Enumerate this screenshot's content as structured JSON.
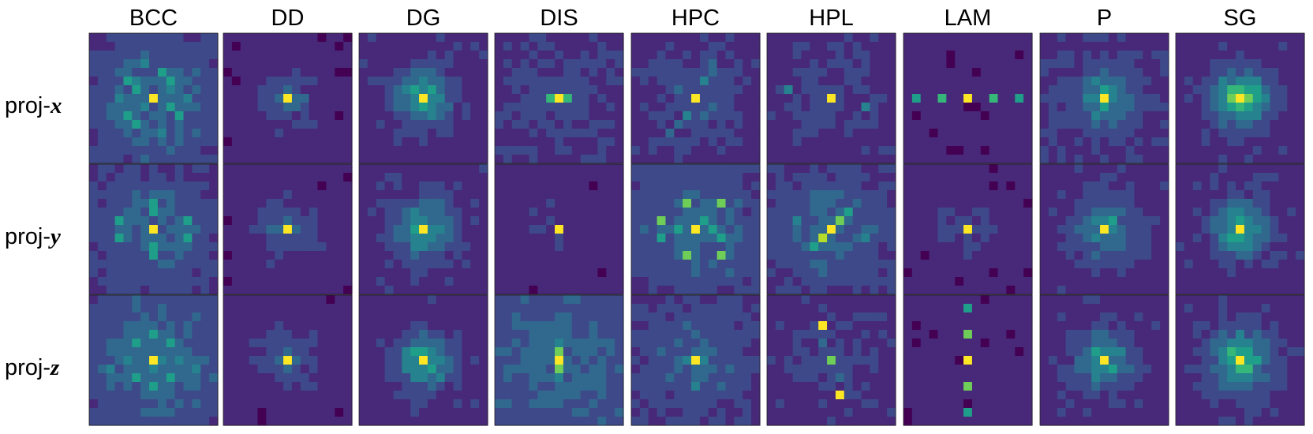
{
  "figure": {
    "columns": [
      "BCC",
      "DD",
      "DG",
      "DIS",
      "HPC",
      "HPL",
      "LAM",
      "P",
      "SG"
    ],
    "rows": [
      {
        "prefix": "proj-",
        "axis": "x"
      },
      {
        "prefix": "proj-",
        "axis": "y"
      },
      {
        "prefix": "proj-",
        "axis": "z"
      }
    ],
    "grid_size": 15,
    "colormap": [
      "#440154",
      "#482878",
      "#3e4989",
      "#31688e",
      "#26828e",
      "#1f9e89",
      "#35b779",
      "#6ece58",
      "#b5de2b",
      "#fde725"
    ],
    "panels": [
      [
        {
          "base": 0.12,
          "blobs": [
            [
              7,
              7,
              5.5,
              0.22
            ]
          ],
          "peaks": [
            [
              7,
              7,
              1
            ],
            [
              5,
              4,
              0.6
            ],
            [
              6,
              5,
              0.55
            ],
            [
              4,
              8,
              0.55
            ],
            [
              5,
              9,
              0.6
            ],
            [
              9,
              4,
              0.55
            ],
            [
              10,
              5,
              0.6
            ],
            [
              8,
              9,
              0.55
            ],
            [
              9,
              10,
              0.55
            ],
            [
              7,
              3,
              0.45
            ],
            [
              7,
              11,
              0.45
            ],
            [
              3,
              6,
              0.4
            ],
            [
              11,
              8,
              0.4
            ]
          ]
        },
        {
          "base": 0.1,
          "blobs": [
            [
              7,
              7,
              2,
              0.2
            ]
          ],
          "peaks": [
            [
              7,
              7,
              1
            ],
            [
              6,
              7,
              0.3
            ],
            [
              8,
              7,
              0.3
            ],
            [
              7,
              6,
              0.3
            ],
            [
              7,
              8,
              0.3
            ]
          ]
        },
        {
          "base": 0.12,
          "blobs": [
            [
              7,
              7,
              2.2,
              0.4
            ]
          ],
          "peaks": [
            [
              7,
              7,
              1
            ],
            [
              6,
              6,
              0.5
            ],
            [
              6,
              8,
              0.5
            ],
            [
              8,
              6,
              0.45
            ],
            [
              8,
              8,
              0.45
            ]
          ]
        },
        {
          "base": 0.14,
          "blobs": [
            [
              7,
              7,
              3.5,
              0.08
            ]
          ],
          "peaks": [
            [
              7,
              7,
              1
            ],
            [
              7,
              6,
              0.7
            ],
            [
              7,
              8,
              0.7
            ],
            [
              7,
              5,
              0.25
            ],
            [
              7,
              9,
              0.25
            ],
            [
              7,
              4,
              0.15
            ],
            [
              7,
              10,
              0.15
            ]
          ]
        },
        {
          "base": 0.12,
          "blobs": [
            [
              7,
              7,
              3.5,
              0.15
            ]
          ],
          "peaks": [
            [
              7,
              7,
              1
            ],
            [
              5,
              8,
              0.4
            ],
            [
              4,
              9,
              0.35
            ],
            [
              3,
              9,
              0.35
            ],
            [
              9,
              6,
              0.4
            ],
            [
              10,
              5,
              0.35
            ],
            [
              11,
              4,
              0.35
            ]
          ]
        },
        {
          "base": 0.12,
          "blobs": [
            [
              7,
              7,
              4,
              0.08
            ]
          ],
          "peaks": [
            [
              7,
              7,
              1
            ],
            [
              6,
              2,
              0.4
            ],
            [
              8,
              11,
              0.45
            ],
            [
              8,
              2,
              0.2
            ],
            [
              6,
              11,
              0.2
            ]
          ]
        },
        {
          "base": 0.1,
          "blobs": [],
          "peaks": [
            [
              7,
              7,
              1
            ],
            [
              7,
              4,
              0.7
            ],
            [
              7,
              10,
              0.7
            ],
            [
              7,
              1,
              0.5
            ],
            [
              7,
              13,
              0.5
            ]
          ]
        },
        {
          "base": 0.14,
          "blobs": [
            [
              7,
              7,
              2.5,
              0.3
            ]
          ],
          "peaks": [
            [
              7,
              7,
              1
            ],
            [
              6,
              7,
              0.5
            ],
            [
              8,
              7,
              0.5
            ],
            [
              7,
              6,
              0.4
            ],
            [
              7,
              8,
              0.4
            ]
          ]
        },
        {
          "base": 0.12,
          "blobs": [
            [
              7,
              7,
              2.2,
              0.55
            ]
          ],
          "peaks": [
            [
              7,
              7,
              1
            ],
            [
              7,
              6,
              0.75
            ],
            [
              7,
              8,
              0.75
            ],
            [
              6,
              7,
              0.65
            ],
            [
              8,
              7,
              0.65
            ]
          ]
        }
      ],
      [
        {
          "base": 0.12,
          "blobs": [
            [
              7,
              7,
              5,
              0.2
            ]
          ],
          "peaks": [
            [
              7,
              7,
              1
            ],
            [
              4,
              7,
              0.6
            ],
            [
              5,
              7,
              0.5
            ],
            [
              9,
              7,
              0.5
            ],
            [
              10,
              7,
              0.6
            ],
            [
              6,
              3,
              0.5
            ],
            [
              8,
              3,
              0.5
            ],
            [
              6,
              11,
              0.5
            ],
            [
              8,
              11,
              0.5
            ],
            [
              7,
              3,
              0.35
            ],
            [
              7,
              11,
              0.35
            ]
          ]
        },
        {
          "base": 0.1,
          "blobs": [
            [
              7,
              7,
              2.2,
              0.2
            ]
          ],
          "peaks": [
            [
              7,
              7,
              1
            ]
          ]
        },
        {
          "base": 0.12,
          "blobs": [
            [
              7,
              7,
              2.5,
              0.35
            ]
          ],
          "peaks": [
            [
              7,
              7,
              1
            ],
            [
              9,
              6,
              0.4
            ],
            [
              6,
              8,
              0.35
            ]
          ]
        },
        {
          "base": 0.1,
          "blobs": [
            [
              7,
              7,
              3,
              0.05
            ]
          ],
          "peaks": [
            [
              7,
              7,
              1
            ],
            [
              7,
              5,
              0.12
            ],
            [
              7,
              9,
              0.12
            ]
          ]
        },
        {
          "base": 0.14,
          "blobs": [
            [
              7,
              7,
              5,
              0.18
            ]
          ],
          "peaks": [
            [
              7,
              7,
              1
            ],
            [
              4,
              6,
              0.8
            ],
            [
              4,
              10,
              0.8
            ],
            [
              6,
              3,
              0.75
            ],
            [
              8,
              3,
              0.6
            ],
            [
              10,
              6,
              0.75
            ],
            [
              10,
              10,
              0.75
            ],
            [
              6,
              8,
              0.6
            ],
            [
              8,
              10,
              0.6
            ],
            [
              7,
              5,
              0.5
            ],
            [
              7,
              9,
              0.5
            ]
          ]
        },
        {
          "base": 0.14,
          "blobs": [
            [
              7,
              7,
              4.5,
              0.18
            ]
          ],
          "peaks": [
            [
              7,
              7,
              1
            ],
            [
              8,
              6,
              0.9
            ],
            [
              6,
              8,
              0.75
            ],
            [
              5,
              9,
              0.55
            ],
            [
              9,
              5,
              0.5
            ],
            [
              6,
              3,
              0.4
            ],
            [
              8,
              11,
              0.4
            ]
          ]
        },
        {
          "base": 0.1,
          "blobs": [
            [
              7,
              7,
              2,
              0.12
            ]
          ],
          "peaks": [
            [
              7,
              7,
              1
            ],
            [
              7,
              6,
              0.2
            ],
            [
              7,
              8,
              0.2
            ],
            [
              6,
              7,
              0.2
            ],
            [
              8,
              7,
              0.2
            ]
          ]
        },
        {
          "base": 0.12,
          "blobs": [
            [
              7,
              7,
              2.5,
              0.3
            ]
          ],
          "peaks": [
            [
              7,
              7,
              1
            ],
            [
              6,
              8,
              0.5
            ],
            [
              8,
              6,
              0.45
            ]
          ]
        },
        {
          "base": 0.12,
          "blobs": [
            [
              7,
              7,
              2.2,
              0.45
            ]
          ],
          "peaks": [
            [
              7,
              7,
              1
            ],
            [
              6,
              7,
              0.6
            ],
            [
              8,
              7,
              0.6
            ]
          ]
        }
      ],
      [
        {
          "base": 0.14,
          "blobs": [
            [
              7,
              7,
              5.5,
              0.22
            ]
          ],
          "peaks": [
            [
              7,
              7,
              1
            ],
            [
              4,
              7,
              0.5
            ],
            [
              10,
              7,
              0.5
            ],
            [
              7,
              4,
              0.45
            ],
            [
              7,
              10,
              0.45
            ],
            [
              5,
              5,
              0.5
            ],
            [
              5,
              9,
              0.5
            ],
            [
              9,
              5,
              0.5
            ],
            [
              9,
              9,
              0.5
            ],
            [
              8,
              2,
              0.45
            ],
            [
              8,
              12,
              0.45
            ]
          ]
        },
        {
          "base": 0.1,
          "blobs": [
            [
              7,
              7,
              2.2,
              0.2
            ]
          ],
          "peaks": [
            [
              7,
              7,
              1
            ]
          ]
        },
        {
          "base": 0.12,
          "blobs": [
            [
              7,
              7,
              2.2,
              0.4
            ]
          ],
          "peaks": [
            [
              7,
              7,
              1
            ],
            [
              6,
              6,
              0.5
            ],
            [
              8,
              8,
              0.5
            ],
            [
              9,
              9,
              0.4
            ]
          ]
        },
        {
          "base": 0.18,
          "blobs": [
            [
              7,
              7,
              6,
              0.15
            ]
          ],
          "peaks": [
            [
              7,
              7,
              1
            ],
            [
              6,
              7,
              0.8
            ],
            [
              8,
              7,
              0.8
            ],
            [
              5,
              7,
              0.4
            ],
            [
              9,
              7,
              0.4
            ],
            [
              12,
              7,
              0.3
            ],
            [
              1,
              7,
              0.25
            ]
          ]
        },
        {
          "base": 0.14,
          "blobs": [
            [
              7,
              7,
              4.5,
              0.15
            ]
          ],
          "peaks": [
            [
              7,
              7,
              1
            ],
            [
              7,
              6,
              0.45
            ],
            [
              7,
              8,
              0.45
            ],
            [
              6,
              3,
              0.3
            ],
            [
              8,
              11,
              0.3
            ],
            [
              10,
              7,
              0.4
            ]
          ]
        },
        {
          "base": 0.12,
          "blobs": [
            [
              7,
              7,
              3.5,
              0.08
            ]
          ],
          "peaks": [
            [
              3,
              6,
              1
            ],
            [
              7,
              7,
              0.75
            ],
            [
              11,
              8,
              1
            ],
            [
              5,
              6,
              0.35
            ],
            [
              9,
              8,
              0.35
            ]
          ]
        },
        {
          "base": 0.1,
          "blobs": [],
          "peaks": [
            [
              7,
              7,
              1
            ],
            [
              4,
              7,
              0.75
            ],
            [
              10,
              7,
              0.75
            ],
            [
              1,
              7,
              0.5
            ],
            [
              13,
              7,
              0.5
            ]
          ]
        },
        {
          "base": 0.12,
          "blobs": [
            [
              7,
              7,
              2.5,
              0.3
            ]
          ],
          "peaks": [
            [
              7,
              7,
              1
            ],
            [
              6,
              6,
              0.55
            ],
            [
              8,
              8,
              0.55
            ],
            [
              6,
              8,
              0.4
            ],
            [
              8,
              6,
              0.4
            ]
          ]
        },
        {
          "base": 0.12,
          "blobs": [
            [
              7,
              7,
              2.5,
              0.45
            ]
          ],
          "peaks": [
            [
              7,
              7,
              1
            ],
            [
              6,
              6,
              0.7
            ],
            [
              8,
              8,
              0.7
            ],
            [
              8,
              7,
              0.55
            ]
          ]
        }
      ]
    ]
  }
}
